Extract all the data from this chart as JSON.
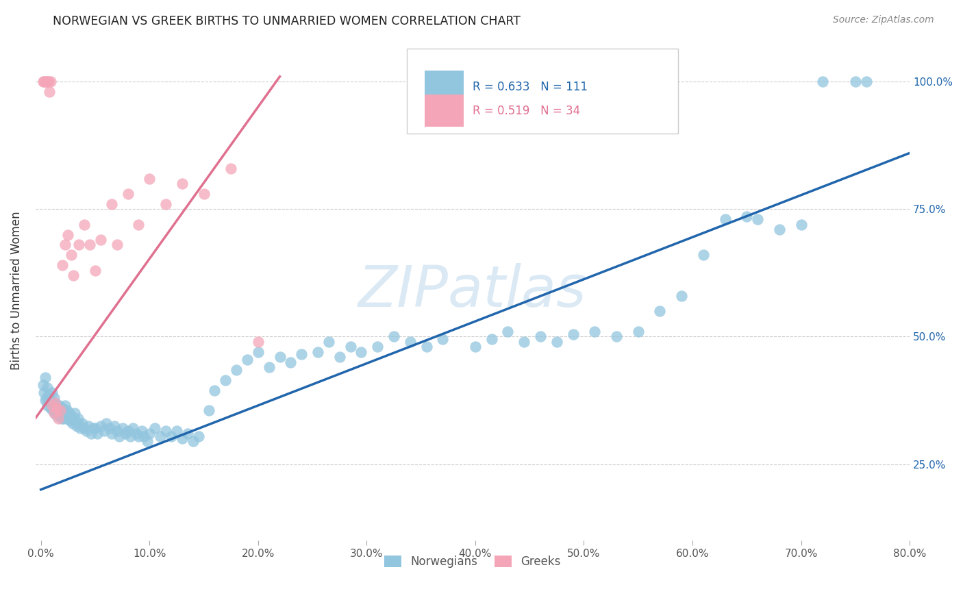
{
  "title": "NORWEGIAN VS GREEK BIRTHS TO UNMARRIED WOMEN CORRELATION CHART",
  "source": "Source: ZipAtlas.com",
  "ylabel": "Births to Unmarried Women",
  "blue_color": "#92c5de",
  "pink_color": "#f4a6b8",
  "blue_line_color": "#2166ac",
  "pink_line_color": "#e07090",
  "watermark": "ZIPatlas",
  "legend_R_blue": "0.633",
  "legend_N_blue": "111",
  "legend_R_pink": "0.519",
  "legend_N_pink": "34",
  "legend_label_blue": "Norwegians",
  "legend_label_pink": "Greeks",
  "blue_line_x": [
    0.0,
    0.8
  ],
  "blue_line_y": [
    0.2,
    0.86
  ],
  "pink_line_x": [
    -0.005,
    0.22
  ],
  "pink_line_y": [
    0.34,
    1.01
  ],
  "xlim": [
    -0.005,
    0.8
  ],
  "ylim": [
    0.1,
    1.08
  ],
  "x_tick_vals": [
    0.0,
    0.1,
    0.2,
    0.3,
    0.4,
    0.5,
    0.6,
    0.7,
    0.8
  ],
  "x_tick_labels": [
    "0.0%",
    "10.0%",
    "20.0%",
    "30.0%",
    "40.0%",
    "50.0%",
    "60.0%",
    "70.0%",
    "80.0%"
  ],
  "y_tick_vals": [
    0.25,
    0.5,
    0.75,
    1.0
  ],
  "y_tick_labels": [
    "25.0%",
    "50.0%",
    "75.0%",
    "100.0%"
  ]
}
